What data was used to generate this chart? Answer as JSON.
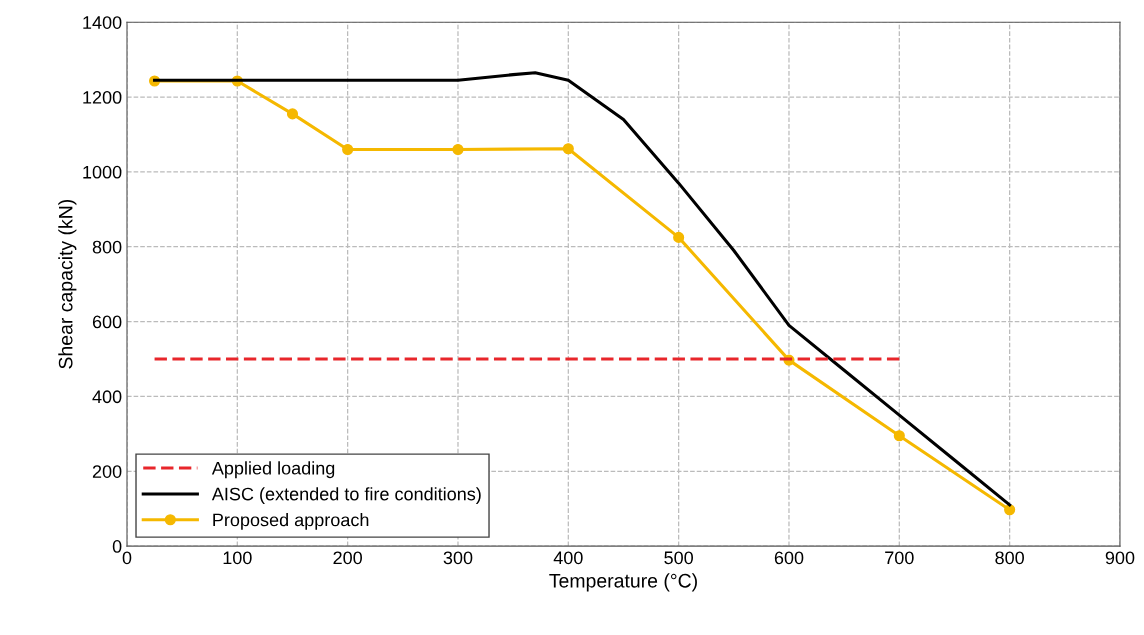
{
  "chart_data": {
    "type": "line",
    "xlabel": "Temperature (°C)",
    "ylabel": "Shear capacity (kN)",
    "xlim": [
      0,
      900
    ],
    "ylim": [
      0,
      1400
    ],
    "xticks": [
      0,
      100,
      200,
      300,
      400,
      500,
      600,
      700,
      800,
      900
    ],
    "yticks": [
      0,
      200,
      400,
      600,
      800,
      1000,
      1200,
      1400
    ],
    "grid": true,
    "legend": "bottom left",
    "series": [
      {
        "name": "Applied loading",
        "color": "#e8262b",
        "line_style": "dashed",
        "marker": "none",
        "x": [
          25,
          700
        ],
        "values": [
          500,
          500
        ]
      },
      {
        "name": "AISC (extended to fire conditions)",
        "color": "#000000",
        "line_style": "solid",
        "marker": "none",
        "x": [
          25,
          100,
          200,
          300,
          350,
          370,
          400,
          450,
          500,
          550,
          600,
          650,
          700,
          750,
          800
        ],
        "values": [
          1245,
          1245,
          1245,
          1245,
          1260,
          1265,
          1245,
          1140,
          970,
          790,
          590,
          470,
          350,
          230,
          110
        ]
      },
      {
        "name": "Proposed approach",
        "color": "#f5b800",
        "line_style": "solid",
        "marker": "circle",
        "x": [
          25,
          100,
          150,
          200,
          300,
          400,
          500,
          600,
          700,
          800
        ],
        "values": [
          1243,
          1243,
          1155,
          1060,
          1060,
          1062,
          825,
          497,
          295,
          97
        ]
      }
    ]
  }
}
